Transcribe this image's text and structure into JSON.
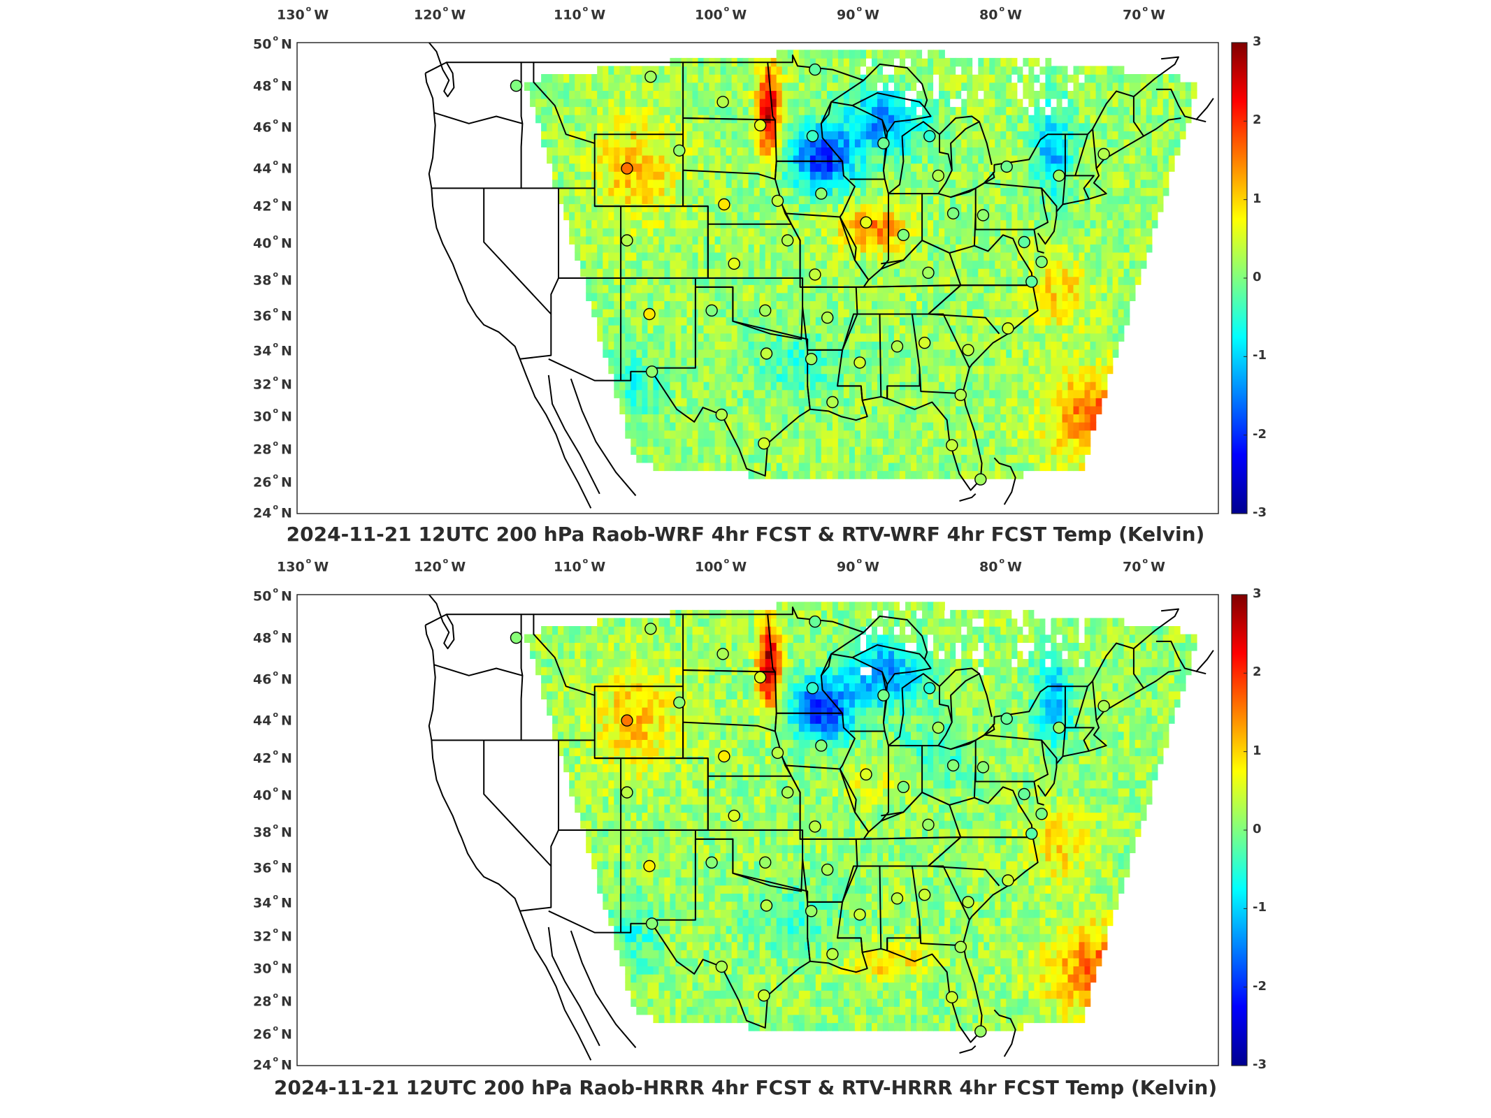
{
  "panels": [
    {
      "title": "2024-11-21 12UTC 200 hPa Raob-WRF 4hr FCST & RTV-WRF 4hr FCST Temp (Kelvin)",
      "variant": "wrf"
    },
    {
      "title": "2024-11-21 12UTC 200 hPa Raob-HRRR 4hr FCST & RTV-HRRR 4hr FCST Temp (Kelvin)",
      "variant": "hrrr"
    }
  ],
  "axes": {
    "lon_ticks": [
      {
        "deg": "130",
        "dir": "W"
      },
      {
        "deg": "120",
        "dir": "W"
      },
      {
        "deg": "110",
        "dir": "W"
      },
      {
        "deg": "100",
        "dir": "W"
      },
      {
        "deg": "90",
        "dir": "W"
      },
      {
        "deg": "80",
        "dir": "W"
      },
      {
        "deg": "70",
        "dir": "W"
      }
    ],
    "lat_ticks": [
      {
        "deg": "50",
        "dir": "N"
      },
      {
        "deg": "48",
        "dir": "N"
      },
      {
        "deg": "46",
        "dir": "N"
      },
      {
        "deg": "44",
        "dir": "N"
      },
      {
        "deg": "42",
        "dir": "N"
      },
      {
        "deg": "40",
        "dir": "N"
      },
      {
        "deg": "38",
        "dir": "N"
      },
      {
        "deg": "36",
        "dir": "N"
      },
      {
        "deg": "34",
        "dir": "N"
      },
      {
        "deg": "32",
        "dir": "N"
      },
      {
        "deg": "30",
        "dir": "N"
      },
      {
        "deg": "28",
        "dir": "N"
      },
      {
        "deg": "26",
        "dir": "N"
      },
      {
        "deg": "24",
        "dir": "N"
      }
    ]
  },
  "colorbar": {
    "ticks": [
      "3",
      "2",
      "1",
      "0",
      "-1",
      "-2",
      "-3"
    ],
    "range": [
      -3,
      3
    ],
    "colormap": "jet",
    "stops": [
      "#00008f",
      "#0000ff",
      "#0080ff",
      "#00ffff",
      "#80ff80",
      "#ffff00",
      "#ff8000",
      "#ff0000",
      "#800000"
    ]
  },
  "stations": [
    {
      "lon": -117.4,
      "lat": 47.7,
      "val": 0.0
    },
    {
      "lon": -106.6,
      "lat": 48.2,
      "val": 0.2
    },
    {
      "lon": -100.8,
      "lat": 46.8,
      "val": 0.3
    },
    {
      "lon": -97.8,
      "lat": 45.5,
      "val": 0.6
    },
    {
      "lon": -93.6,
      "lat": 44.9,
      "val": -0.4
    },
    {
      "lon": -93.4,
      "lat": 48.6,
      "val": -0.2
    },
    {
      "lon": -108.5,
      "lat": 43.1,
      "val": 1.6
    },
    {
      "lon": -104.3,
      "lat": 44.1,
      "val": 0.1
    },
    {
      "lon": -100.7,
      "lat": 41.1,
      "val": 0.9
    },
    {
      "lon": -96.4,
      "lat": 41.3,
      "val": 0.4
    },
    {
      "lon": -108.5,
      "lat": 39.1,
      "val": 0.3
    },
    {
      "lon": -99.9,
      "lat": 37.8,
      "val": 0.6
    },
    {
      "lon": -95.6,
      "lat": 39.1,
      "val": 0.3
    },
    {
      "lon": -92.9,
      "lat": 41.7,
      "val": 0.1
    },
    {
      "lon": -89.3,
      "lat": 40.1,
      "val": 0.6
    },
    {
      "lon": -87.9,
      "lat": 44.5,
      "val": -0.1
    },
    {
      "lon": -84.2,
      "lat": 44.9,
      "val": -0.5
    },
    {
      "lon": -83.5,
      "lat": 42.7,
      "val": 0.3
    },
    {
      "lon": -86.3,
      "lat": 39.4,
      "val": 0.0
    },
    {
      "lon": -84.3,
      "lat": 37.3,
      "val": 0.2
    },
    {
      "lon": -82.3,
      "lat": 40.6,
      "val": 0.0
    },
    {
      "lon": -79.9,
      "lat": 40.5,
      "val": 0.1
    },
    {
      "lon": -78.0,
      "lat": 43.2,
      "val": -0.1
    },
    {
      "lon": -73.8,
      "lat": 42.7,
      "val": 0.2
    },
    {
      "lon": -70.2,
      "lat": 43.9,
      "val": 0.3
    },
    {
      "lon": -76.6,
      "lat": 39.0,
      "val": -0.2
    },
    {
      "lon": -75.2,
      "lat": 37.9,
      "val": 0.0
    },
    {
      "lon": -77.9,
      "lat": 34.2,
      "val": 0.5
    },
    {
      "lon": -81.1,
      "lat": 33.0,
      "val": 0.4
    },
    {
      "lon": -84.6,
      "lat": 33.4,
      "val": 0.5
    },
    {
      "lon": -86.8,
      "lat": 33.2,
      "val": 0.3
    },
    {
      "lon": -89.8,
      "lat": 32.3,
      "val": 0.5
    },
    {
      "lon": -92.4,
      "lat": 34.8,
      "val": 0.3
    },
    {
      "lon": -93.4,
      "lat": 37.2,
      "val": 0.4
    },
    {
      "lon": -97.4,
      "lat": 35.2,
      "val": 0.2
    },
    {
      "lon": -101.7,
      "lat": 35.2,
      "val": 0.0
    },
    {
      "lon": -106.7,
      "lat": 35.0,
      "val": 0.9
    },
    {
      "lon": -106.5,
      "lat": 31.8,
      "val": 0.1
    },
    {
      "lon": -97.3,
      "lat": 32.8,
      "val": 0.4
    },
    {
      "lon": -93.7,
      "lat": 32.5,
      "val": 0.2
    },
    {
      "lon": -92.0,
      "lat": 30.1,
      "val": 0.3
    },
    {
      "lon": -100.9,
      "lat": 29.4,
      "val": 0.3
    },
    {
      "lon": -97.5,
      "lat": 27.8,
      "val": 0.5
    },
    {
      "lon": -81.7,
      "lat": 30.5,
      "val": 0.3
    },
    {
      "lon": -80.1,
      "lat": 25.8,
      "val": 0.2
    },
    {
      "lon": -82.4,
      "lat": 27.7,
      "val": 0.4
    },
    {
      "lon": -76.0,
      "lat": 36.8,
      "val": -0.2
    }
  ]
}
